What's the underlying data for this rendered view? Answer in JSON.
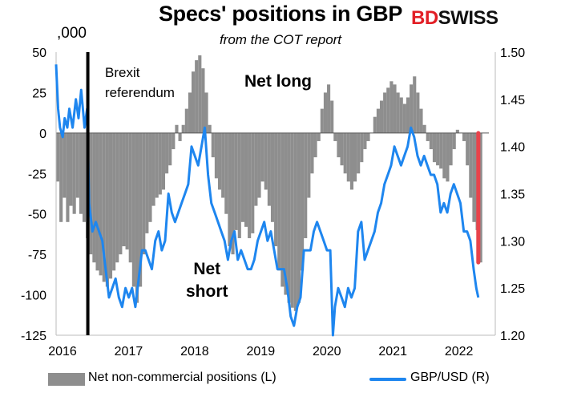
{
  "header": {
    "title": "Specs' positions in GBP",
    "subtitle": "from the COT report",
    "logo_part1": "BD",
    "logo_part2": "SWISS",
    "units_label": ",000"
  },
  "annotations": {
    "brexit_line1": "Brexit",
    "brexit_line2": "referendum",
    "net_long": "Net long",
    "net_short_line1": "Net",
    "net_short_line2": "short"
  },
  "legend": {
    "bars_label": "Net non-commercial positions (L)",
    "line_label": "GBP/USD (R)"
  },
  "chart_data": {
    "type": "bar+line",
    "title": "Specs' positions in GBP",
    "subtitle": "from the COT report",
    "x_range": [
      2016.0,
      2022.55
    ],
    "x_ticks": [
      2016,
      2017,
      2018,
      2019,
      2020,
      2021,
      2022
    ],
    "ylim_left": [
      -125,
      50
    ],
    "yticks_left": [
      50,
      25,
      0,
      -25,
      -50,
      -75,
      -100,
      -125
    ],
    "ylim_right": [
      1.2,
      1.5
    ],
    "yticks_right": [
      1.5,
      1.45,
      1.4,
      1.35,
      1.3,
      1.25,
      1.2
    ],
    "colors": {
      "bars": "#8e8e8e",
      "line": "#1e86ef",
      "highlight": "#e8434b",
      "marker": "#000000"
    },
    "brexit_referendum_x": 2016.48,
    "series": [
      {
        "name": "Net non-commercial positions (L)",
        "axis": "left",
        "kind": "bar",
        "points": [
          [
            2016.0,
            -30
          ],
          [
            2016.05,
            -55
          ],
          [
            2016.1,
            -40
          ],
          [
            2016.15,
            -55
          ],
          [
            2016.2,
            -45
          ],
          [
            2016.25,
            -50
          ],
          [
            2016.3,
            -40
          ],
          [
            2016.35,
            -50
          ],
          [
            2016.4,
            -55
          ],
          [
            2016.45,
            -65
          ],
          [
            2016.5,
            -75
          ],
          [
            2016.55,
            -80
          ],
          [
            2016.6,
            -85
          ],
          [
            2016.65,
            -88
          ],
          [
            2016.7,
            -92
          ],
          [
            2016.75,
            -95
          ],
          [
            2016.8,
            -90
          ],
          [
            2016.85,
            -85
          ],
          [
            2016.9,
            -80
          ],
          [
            2016.95,
            -75
          ],
          [
            2017.0,
            -70
          ],
          [
            2017.05,
            -72
          ],
          [
            2017.1,
            -80
          ],
          [
            2017.15,
            -95
          ],
          [
            2017.2,
            -105
          ],
          [
            2017.25,
            -95
          ],
          [
            2017.3,
            -75
          ],
          [
            2017.35,
            -62
          ],
          [
            2017.4,
            -55
          ],
          [
            2017.45,
            -45
          ],
          [
            2017.5,
            -40
          ],
          [
            2017.55,
            -38
          ],
          [
            2017.6,
            -35
          ],
          [
            2017.65,
            -25
          ],
          [
            2017.7,
            -20
          ],
          [
            2017.75,
            -10
          ],
          [
            2017.8,
            5
          ],
          [
            2017.85,
            -5
          ],
          [
            2017.9,
            5
          ],
          [
            2017.95,
            15
          ],
          [
            2018.0,
            25
          ],
          [
            2018.05,
            38
          ],
          [
            2018.1,
            45
          ],
          [
            2018.15,
            48
          ],
          [
            2018.2,
            40
          ],
          [
            2018.25,
            25
          ],
          [
            2018.3,
            5
          ],
          [
            2018.35,
            -15
          ],
          [
            2018.4,
            -28
          ],
          [
            2018.45,
            -35
          ],
          [
            2018.5,
            -40
          ],
          [
            2018.55,
            -50
          ],
          [
            2018.6,
            -70
          ],
          [
            2018.65,
            -75
          ],
          [
            2018.7,
            -60
          ],
          [
            2018.75,
            -65
          ],
          [
            2018.8,
            -55
          ],
          [
            2018.85,
            -58
          ],
          [
            2018.9,
            -65
          ],
          [
            2018.95,
            -62
          ],
          [
            2019.0,
            -45
          ],
          [
            2019.05,
            -40
          ],
          [
            2019.1,
            -30
          ],
          [
            2019.15,
            -35
          ],
          [
            2019.2,
            -45
          ],
          [
            2019.25,
            -55
          ],
          [
            2019.3,
            -70
          ],
          [
            2019.35,
            -85
          ],
          [
            2019.4,
            -95
          ],
          [
            2019.45,
            -100
          ],
          [
            2019.5,
            -105
          ],
          [
            2019.55,
            -108
          ],
          [
            2019.6,
            -110
          ],
          [
            2019.65,
            -105
          ],
          [
            2019.7,
            -85
          ],
          [
            2019.75,
            -65
          ],
          [
            2019.8,
            -40
          ],
          [
            2019.85,
            -25
          ],
          [
            2019.9,
            -15
          ],
          [
            2019.95,
            -5
          ],
          [
            2020.0,
            15
          ],
          [
            2020.05,
            25
          ],
          [
            2020.1,
            30
          ],
          [
            2020.15,
            20
          ],
          [
            2020.2,
            -5
          ],
          [
            2020.25,
            -15
          ],
          [
            2020.3,
            -20
          ],
          [
            2020.35,
            -25
          ],
          [
            2020.4,
            -30
          ],
          [
            2020.45,
            -35
          ],
          [
            2020.5,
            -30
          ],
          [
            2020.55,
            -25
          ],
          [
            2020.6,
            -18
          ],
          [
            2020.65,
            -10
          ],
          [
            2020.7,
            -5
          ],
          [
            2020.75,
            0
          ],
          [
            2020.8,
            10
          ],
          [
            2020.85,
            15
          ],
          [
            2020.9,
            20
          ],
          [
            2020.95,
            25
          ],
          [
            2021.0,
            28
          ],
          [
            2021.05,
            32
          ],
          [
            2021.1,
            30
          ],
          [
            2021.15,
            25
          ],
          [
            2021.2,
            22
          ],
          [
            2021.25,
            18
          ],
          [
            2021.3,
            22
          ],
          [
            2021.35,
            30
          ],
          [
            2021.4,
            35
          ],
          [
            2021.45,
            25
          ],
          [
            2021.5,
            15
          ],
          [
            2021.55,
            5
          ],
          [
            2021.6,
            -5
          ],
          [
            2021.65,
            -10
          ],
          [
            2021.7,
            -18
          ],
          [
            2021.75,
            -20
          ],
          [
            2021.8,
            -22
          ],
          [
            2021.85,
            -28
          ],
          [
            2021.9,
            -30
          ],
          [
            2021.95,
            -20
          ],
          [
            2022.0,
            -10
          ],
          [
            2022.05,
            2
          ],
          [
            2022.1,
            0
          ],
          [
            2022.15,
            -5
          ],
          [
            2022.2,
            -20
          ],
          [
            2022.25,
            -40
          ],
          [
            2022.3,
            -55
          ],
          [
            2022.35,
            -60
          ],
          [
            2022.4,
            -80
          ]
        ]
      },
      {
        "name": "GBP/USD (R)",
        "axis": "right",
        "kind": "line",
        "points": [
          [
            2016.0,
            1.487
          ],
          [
            2016.03,
            1.44
          ],
          [
            2016.06,
            1.42
          ],
          [
            2016.1,
            1.41
          ],
          [
            2016.13,
            1.43
          ],
          [
            2016.17,
            1.42
          ],
          [
            2016.2,
            1.44
          ],
          [
            2016.25,
            1.42
          ],
          [
            2016.3,
            1.45
          ],
          [
            2016.34,
            1.43
          ],
          [
            2016.38,
            1.46
          ],
          [
            2016.43,
            1.42
          ],
          [
            2016.47,
            1.44
          ],
          [
            2016.5,
            1.34
          ],
          [
            2016.55,
            1.31
          ],
          [
            2016.6,
            1.32
          ],
          [
            2016.65,
            1.31
          ],
          [
            2016.7,
            1.3
          ],
          [
            2016.75,
            1.27
          ],
          [
            2016.8,
            1.24
          ],
          [
            2016.85,
            1.25
          ],
          [
            2016.9,
            1.26
          ],
          [
            2016.95,
            1.24
          ],
          [
            2017.0,
            1.23
          ],
          [
            2017.05,
            1.25
          ],
          [
            2017.1,
            1.24
          ],
          [
            2017.15,
            1.25
          ],
          [
            2017.2,
            1.23
          ],
          [
            2017.25,
            1.26
          ],
          [
            2017.3,
            1.29
          ],
          [
            2017.35,
            1.29
          ],
          [
            2017.4,
            1.28
          ],
          [
            2017.45,
            1.27
          ],
          [
            2017.5,
            1.3
          ],
          [
            2017.55,
            1.31
          ],
          [
            2017.6,
            1.29
          ],
          [
            2017.65,
            1.3
          ],
          [
            2017.7,
            1.35
          ],
          [
            2017.75,
            1.33
          ],
          [
            2017.8,
            1.32
          ],
          [
            2017.85,
            1.33
          ],
          [
            2017.9,
            1.34
          ],
          [
            2017.95,
            1.35
          ],
          [
            2018.0,
            1.36
          ],
          [
            2018.05,
            1.4
          ],
          [
            2018.1,
            1.39
          ],
          [
            2018.15,
            1.38
          ],
          [
            2018.2,
            1.4
          ],
          [
            2018.25,
            1.42
          ],
          [
            2018.3,
            1.37
          ],
          [
            2018.35,
            1.34
          ],
          [
            2018.4,
            1.33
          ],
          [
            2018.45,
            1.32
          ],
          [
            2018.5,
            1.31
          ],
          [
            2018.55,
            1.3
          ],
          [
            2018.6,
            1.28
          ],
          [
            2018.65,
            1.3
          ],
          [
            2018.7,
            1.31
          ],
          [
            2018.75,
            1.28
          ],
          [
            2018.8,
            1.29
          ],
          [
            2018.85,
            1.28
          ],
          [
            2018.9,
            1.27
          ],
          [
            2018.95,
            1.27
          ],
          [
            2019.0,
            1.28
          ],
          [
            2019.05,
            1.3
          ],
          [
            2019.1,
            1.31
          ],
          [
            2019.15,
            1.32
          ],
          [
            2019.2,
            1.3
          ],
          [
            2019.25,
            1.31
          ],
          [
            2019.3,
            1.29
          ],
          [
            2019.35,
            1.27
          ],
          [
            2019.4,
            1.27
          ],
          [
            2019.45,
            1.27
          ],
          [
            2019.5,
            1.25
          ],
          [
            2019.55,
            1.22
          ],
          [
            2019.6,
            1.21
          ],
          [
            2019.65,
            1.23
          ],
          [
            2019.7,
            1.24
          ],
          [
            2019.75,
            1.29
          ],
          [
            2019.8,
            1.29
          ],
          [
            2019.85,
            1.29
          ],
          [
            2019.9,
            1.31
          ],
          [
            2019.95,
            1.32
          ],
          [
            2020.0,
            1.31
          ],
          [
            2020.05,
            1.3
          ],
          [
            2020.1,
            1.29
          ],
          [
            2020.15,
            1.29
          ],
          [
            2020.19,
            1.2
          ],
          [
            2020.22,
            1.23
          ],
          [
            2020.27,
            1.25
          ],
          [
            2020.32,
            1.24
          ],
          [
            2020.37,
            1.23
          ],
          [
            2020.42,
            1.25
          ],
          [
            2020.47,
            1.24
          ],
          [
            2020.52,
            1.25
          ],
          [
            2020.57,
            1.31
          ],
          [
            2020.62,
            1.32
          ],
          [
            2020.67,
            1.28
          ],
          [
            2020.72,
            1.29
          ],
          [
            2020.77,
            1.3
          ],
          [
            2020.82,
            1.31
          ],
          [
            2020.87,
            1.33
          ],
          [
            2020.92,
            1.34
          ],
          [
            2020.97,
            1.36
          ],
          [
            2021.02,
            1.37
          ],
          [
            2021.07,
            1.38
          ],
          [
            2021.12,
            1.4
          ],
          [
            2021.17,
            1.39
          ],
          [
            2021.22,
            1.38
          ],
          [
            2021.27,
            1.39
          ],
          [
            2021.32,
            1.4
          ],
          [
            2021.37,
            1.42
          ],
          [
            2021.42,
            1.41
          ],
          [
            2021.47,
            1.39
          ],
          [
            2021.52,
            1.38
          ],
          [
            2021.57,
            1.39
          ],
          [
            2021.62,
            1.38
          ],
          [
            2021.67,
            1.37
          ],
          [
            2021.72,
            1.37
          ],
          [
            2021.77,
            1.36
          ],
          [
            2021.82,
            1.33
          ],
          [
            2021.87,
            1.34
          ],
          [
            2021.92,
            1.33
          ],
          [
            2021.97,
            1.35
          ],
          [
            2022.02,
            1.36
          ],
          [
            2022.07,
            1.35
          ],
          [
            2022.12,
            1.34
          ],
          [
            2022.17,
            1.31
          ],
          [
            2022.22,
            1.31
          ],
          [
            2022.27,
            1.3
          ],
          [
            2022.32,
            1.27
          ],
          [
            2022.36,
            1.25
          ],
          [
            2022.39,
            1.24
          ]
        ]
      },
      {
        "name": "",
        "axis": "left",
        "kind": "highlight",
        "points": [
          [
            2022.39,
            0
          ],
          [
            2022.39,
            -80
          ]
        ]
      }
    ]
  }
}
